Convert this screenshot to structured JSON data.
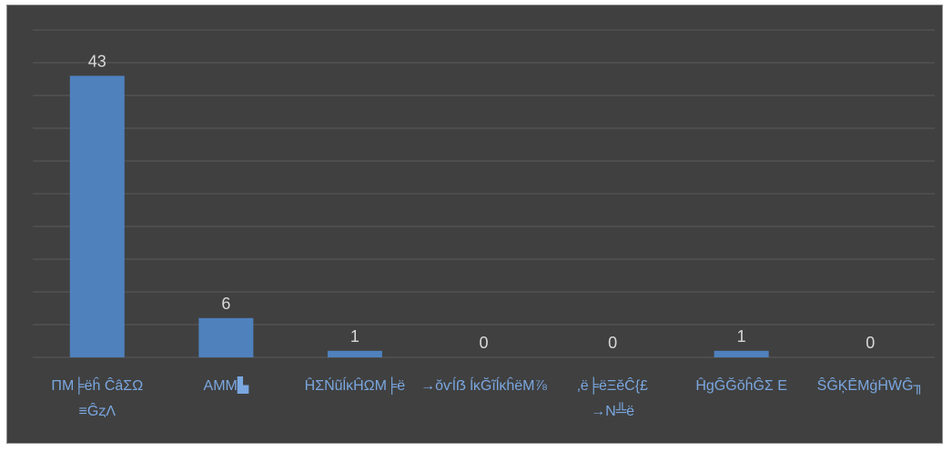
{
  "chart_data": {
    "type": "bar",
    "categories": [
      [
        "ΠΜ╞ëĥ ĈâΣΩ",
        "≡ĜȥΛ"
      ],
      [
        "ΑΜΜ▙"
      ],
      [
        "ĤΣŃũĺĸĤΩΜ╞ë"
      ],
      [
        "→ŏѵĺẞ ĺĸĞĩĺĸĥëΜ⅞"
      ],
      [
        "‚ë╞ëΞĕĈ{£",
        "→Ν╩ë"
      ],
      [
        "ĤgĜĞŏĥĜΣ Ε"
      ],
      [
        "ŜĜĶĒΜġĤŴĜ╖"
      ]
    ],
    "values": [
      43,
      6,
      1,
      0,
      0,
      1,
      0
    ],
    "ylim": [
      0,
      50
    ],
    "grid": true,
    "colors": {
      "bar": "#4f81bd",
      "background": "#404040",
      "grid": "#5a5a5a",
      "value_label": "#d9d9d9",
      "category_label": "#7aa7e0"
    }
  }
}
